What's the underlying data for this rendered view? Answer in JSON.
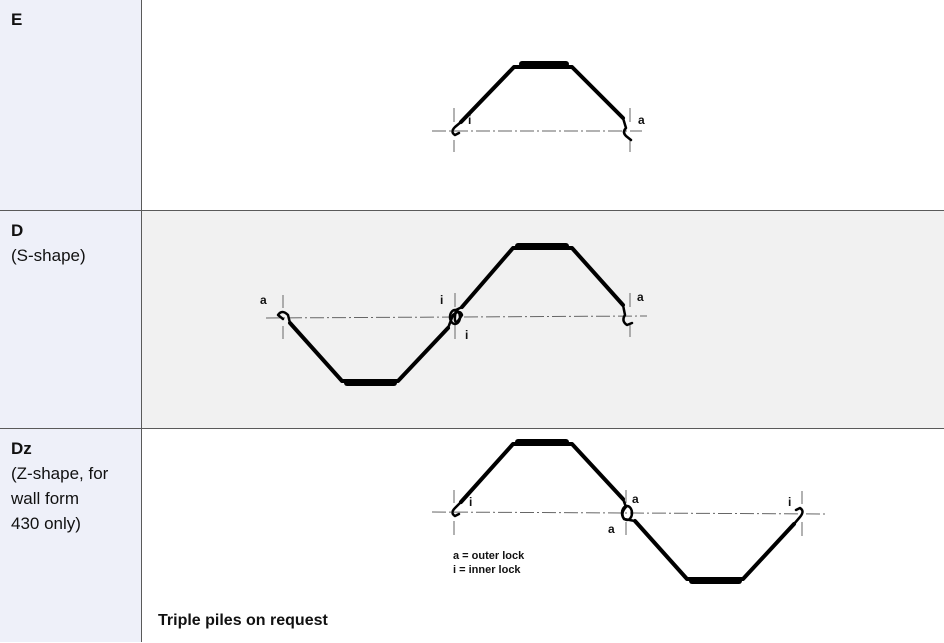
{
  "rows": [
    {
      "code": "E",
      "description": "",
      "labels": {
        "left": "i",
        "right": "a"
      }
    },
    {
      "code": "D",
      "description": "(S-shape)",
      "labels": {
        "left": "a",
        "mid_top": "i",
        "mid_bottom": "i",
        "right": "a"
      }
    },
    {
      "code": "Dz",
      "description": "(Z-shape, for\n wall form\n430 only)",
      "labels": {
        "left": "i",
        "mid_top": "a",
        "mid_bottom": "a",
        "right": "i"
      },
      "legend": {
        "outer": "a = outer lock",
        "inner": "i  = inner lock"
      },
      "note": "Triple piles on request"
    }
  ]
}
